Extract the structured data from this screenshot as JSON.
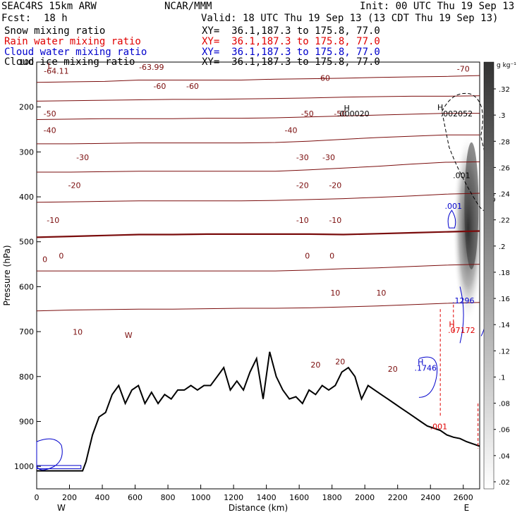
{
  "header": {
    "model": "SEAC4RS 15km ARW",
    "org": "NCAR/MMM",
    "init": "Init: 00 UTC Thu 19 Sep 13",
    "fcst_label": "Fcst:",
    "fcst_value": "18 h",
    "valid": "Valid: 18 UTC Thu 19 Sep 13 (13 CDT Thu 19 Sep 13)",
    "fields": [
      {
        "name": "Snow mixing ratio",
        "xy": "XY=  36.1,187.3 to 175.8, 77.0",
        "color": "#000000"
      },
      {
        "name": "Rain water mixing ratio",
        "xy": "XY=  36.1,187.3 to 175.8, 77.0",
        "color": "#e00000"
      },
      {
        "name": "Cloud water mixing ratio",
        "xy": "XY=  36.1,187.3 to 175.8, 77.0",
        "color": "#0000cc"
      },
      {
        "name": "Cloud ice mixing ratio",
        "xy": "XY=  36.1,187.3 to 175.8, 77.0",
        "color": "#000000"
      }
    ]
  },
  "colorbar": {
    "unit": "g kg⁻¹",
    "ticks": [
      ".32",
      ".3",
      ".28",
      ".26",
      ".24",
      ".22",
      ".2",
      ".18",
      ".16",
      ".14",
      ".12",
      ".1",
      ".08",
      ".06",
      ".04",
      ".02"
    ]
  },
  "colors": {
    "temperature": "#7a0c0c",
    "terrain": "#000000",
    "rain": "#e00000",
    "cloud_water": "#0000cc"
  },
  "chart_data": {
    "type": "contour",
    "xlabel": "Distance (km)",
    "ylabel": "Pressure (hPa)",
    "xlim": [
      0,
      2700
    ],
    "ylim": [
      1050,
      100
    ],
    "xticks": [
      0,
      200,
      400,
      600,
      800,
      1000,
      1200,
      1400,
      1600,
      1800,
      2000,
      2200,
      2400,
      2600
    ],
    "yticks": [
      1000,
      900,
      800,
      700,
      600,
      500,
      400,
      300,
      200,
      100
    ],
    "end_labels": {
      "left": "W",
      "right": "E"
    },
    "temperature_isotherms": [
      {
        "value": -60,
        "p": [
          145,
          144,
          143,
          140,
          140,
          140,
          140,
          138,
          137,
          136,
          134,
          133,
          132,
          130
        ]
      },
      {
        "value": -50,
        "p": [
          187,
          186,
          185,
          184,
          183,
          183,
          182,
          181,
          180,
          178,
          177,
          176,
          176,
          175
        ]
      },
      {
        "value": -40,
        "p": [
          228,
          227,
          226,
          226,
          226,
          225,
          225,
          224,
          222,
          220,
          218,
          216,
          214,
          214
        ]
      },
      {
        "value": -30,
        "p": [
          282,
          282,
          281,
          280,
          280,
          280,
          280,
          279,
          276,
          272,
          268,
          265,
          262,
          262
        ]
      },
      {
        "value": -20,
        "p": [
          345,
          345,
          344,
          343,
          343,
          343,
          343,
          343,
          340,
          336,
          332,
          327,
          323,
          322
        ]
      },
      {
        "value": -10,
        "p": [
          412,
          411,
          410,
          409,
          409,
          409,
          409,
          408,
          406,
          404,
          401,
          398,
          394,
          392
        ]
      },
      {
        "value": 0,
        "p": [
          490,
          488,
          486,
          484,
          484,
          483,
          483,
          483,
          483,
          484,
          482,
          480,
          478,
          476
        ]
      },
      {
        "value": 10,
        "p": [
          565,
          565,
          565,
          565,
          565,
          565,
          565,
          565,
          563,
          560,
          558,
          555,
          552,
          550
        ]
      },
      {
        "value": 20,
        "p": [
          654,
          652,
          651,
          650,
          650,
          649,
          648,
          648,
          647,
          645,
          643,
          640,
          637,
          635
        ]
      }
    ],
    "contour_labels": [
      {
        "text": "-64.11",
        "x": 120,
        "p": 126
      },
      {
        "text": "L",
        "x": 80,
        "p": 114
      },
      {
        "text": "-63.99",
        "x": 700,
        "p": 117
      },
      {
        "text": "-60",
        "x": 750,
        "p": 160
      },
      {
        "text": "-60",
        "x": 950,
        "p": 160
      },
      {
        "text": "-60",
        "x": 1750,
        "p": 142
      },
      {
        "text": "-70",
        "x": 2600,
        "p": 121
      },
      {
        "text": "-50",
        "x": 80,
        "p": 221
      },
      {
        "text": "-50",
        "x": 1650,
        "p": 221
      },
      {
        "text": "-50",
        "x": 1850,
        "p": 221
      },
      {
        "text": "-40",
        "x": 80,
        "p": 258
      },
      {
        "text": "-40",
        "x": 1550,
        "p": 258
      },
      {
        "text": "-30",
        "x": 280,
        "p": 318
      },
      {
        "text": "-30",
        "x": 1620,
        "p": 318
      },
      {
        "text": "-30",
        "x": 1780,
        "p": 318
      },
      {
        "text": "-20",
        "x": 230,
        "p": 380
      },
      {
        "text": "-20",
        "x": 1620,
        "p": 380
      },
      {
        "text": "-20",
        "x": 1820,
        "p": 380
      },
      {
        "text": "-10",
        "x": 100,
        "p": 458
      },
      {
        "text": "-10",
        "x": 1620,
        "p": 458
      },
      {
        "text": "-10",
        "x": 1820,
        "p": 458
      },
      {
        "text": "0",
        "x": 150,
        "p": 537
      },
      {
        "text": "0",
        "x": 1650,
        "p": 537
      },
      {
        "text": "0",
        "x": 1800,
        "p": 537
      },
      {
        "text": "0",
        "x": 50,
        "p": 545
      },
      {
        "text": "10",
        "x": 1820,
        "p": 620
      },
      {
        "text": "10",
        "x": 2100,
        "p": 620
      },
      {
        "text": "10",
        "x": 250,
        "p": 707
      },
      {
        "text": "20",
        "x": 1700,
        "p": 780
      },
      {
        "text": "20",
        "x": 1850,
        "p": 773
      },
      {
        "text": "20",
        "x": 2170,
        "p": 789
      },
      {
        "text": "W",
        "x": 560,
        "p": 714
      }
    ],
    "extrema_labels": [
      {
        "text": "H",
        "x": 1890,
        "p": 208,
        "color": "#000000"
      },
      {
        "text": ".000020",
        "x": 1930,
        "p": 221,
        "color": "#000000"
      },
      {
        "text": "H",
        "x": 2460,
        "p": 207,
        "color": "#000000"
      },
      {
        "text": ".002052",
        "x": 2560,
        "p": 221,
        "color": "#000000"
      },
      {
        "text": ".001",
        "x": 2590,
        "p": 358,
        "color": "#000000"
      },
      {
        "text": ".001",
        "x": 2540,
        "p": 427,
        "color": "#0000cc"
      },
      {
        "text": ".1296",
        "x": 2600,
        "p": 637,
        "color": "#0000cc"
      },
      {
        "text": "H",
        "x": 2530,
        "p": 690,
        "color": "#e00000"
      },
      {
        "text": ".07172",
        "x": 2590,
        "p": 703,
        "color": "#e00000"
      },
      {
        "text": "H",
        "x": 2340,
        "p": 774,
        "color": "#0000cc"
      },
      {
        "text": ".1746",
        "x": 2370,
        "p": 787,
        "color": "#0000cc"
      },
      {
        "text": ".001",
        "x": 2450,
        "p": 917,
        "color": "#e00000"
      }
    ],
    "terrain": {
      "x": [
        0,
        280,
        300,
        340,
        380,
        420,
        460,
        500,
        540,
        580,
        620,
        660,
        700,
        740,
        780,
        820,
        860,
        900,
        940,
        980,
        1020,
        1060,
        1100,
        1140,
        1180,
        1220,
        1260,
        1300,
        1340,
        1380,
        1420,
        1460,
        1500,
        1540,
        1580,
        1620,
        1660,
        1700,
        1740,
        1780,
        1820,
        1860,
        1900,
        1940,
        1980,
        2020,
        2060,
        2100,
        2140,
        2180,
        2220,
        2260,
        2300,
        2340,
        2380,
        2420,
        2460,
        2500,
        2540,
        2580,
        2620,
        2660,
        2700
      ],
      "p": [
        1010,
        1010,
        990,
        930,
        890,
        880,
        840,
        820,
        860,
        830,
        820,
        860,
        835,
        860,
        840,
        850,
        830,
        830,
        820,
        830,
        820,
        820,
        800,
        780,
        830,
        810,
        830,
        790,
        760,
        850,
        745,
        800,
        830,
        850,
        845,
        860,
        830,
        840,
        820,
        830,
        820,
        790,
        780,
        800,
        850,
        820,
        830,
        840,
        850,
        860,
        870,
        880,
        890,
        900,
        910,
        915,
        920,
        930,
        935,
        938,
        945,
        950,
        955
      ]
    },
    "snow_ice_shading": {
      "max_value": 0.32,
      "location": "x 2520-2680 km, p 220-620 hPa"
    }
  }
}
